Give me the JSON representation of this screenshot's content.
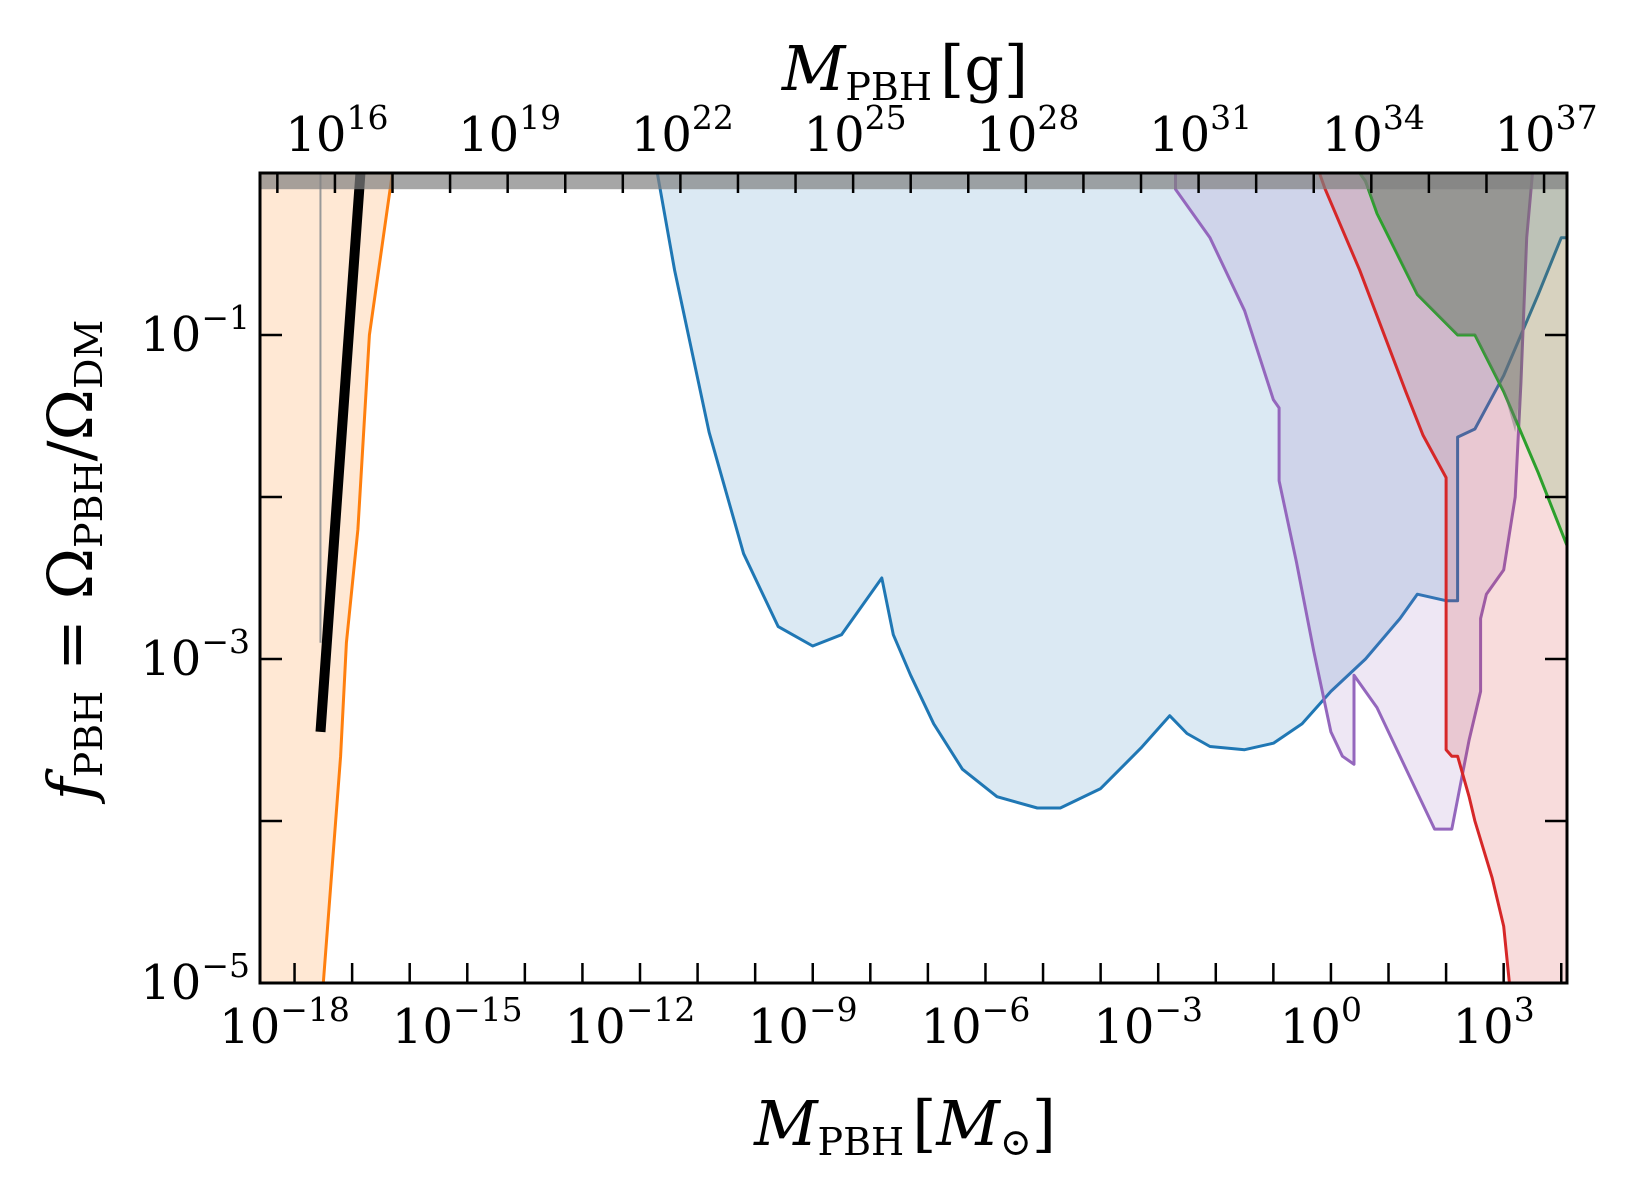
{
  "chart_data": {
    "type": "area",
    "xscale": "log",
    "yscale": "log",
    "xlim_exp": [
      -18.6,
      4.1
    ],
    "ylim_exp": [
      -5,
      0
    ],
    "xlabel": {
      "main": "M",
      "sub": "PBH",
      "unit": "M",
      "unit_sub": "⊙"
    },
    "ylabel": {
      "main": "f",
      "sub": "PBH",
      "eq": " = Ω",
      "sub2": "PBH",
      "slash": "/Ω",
      "sub3": "DM"
    },
    "top_xlabel": {
      "main": "M",
      "sub": "PBH",
      "unit": "g"
    },
    "grams_per_solar_mass": 1.989e+33,
    "x_ticks": [
      {
        "base": "10",
        "exp": "−18",
        "value_exp": -18
      },
      {
        "base": "10",
        "exp": "−15",
        "value_exp": -15
      },
      {
        "base": "10",
        "exp": "−12",
        "value_exp": -12
      },
      {
        "base": "10",
        "exp": "−9",
        "value_exp": -9
      },
      {
        "base": "10",
        "exp": "−6",
        "value_exp": -6
      },
      {
        "base": "10",
        "exp": "−3",
        "value_exp": -3
      },
      {
        "base": "10",
        "exp": "0",
        "value_exp": 0
      },
      {
        "base": "10",
        "exp": "3",
        "value_exp": 3
      }
    ],
    "top_ticks": [
      {
        "base": "10",
        "exp": "16",
        "value_exp_g": 16
      },
      {
        "base": "10",
        "exp": "19",
        "value_exp_g": 19
      },
      {
        "base": "10",
        "exp": "22",
        "value_exp_g": 22
      },
      {
        "base": "10",
        "exp": "25",
        "value_exp_g": 25
      },
      {
        "base": "10",
        "exp": "28",
        "value_exp_g": 28
      },
      {
        "base": "10",
        "exp": "31",
        "value_exp_g": 31
      },
      {
        "base": "10",
        "exp": "34",
        "value_exp_g": 34
      },
      {
        "base": "10",
        "exp": "37",
        "value_exp_g": 37
      }
    ],
    "y_ticks": [
      {
        "base": "10",
        "exp": "−1",
        "value_exp": -1
      },
      {
        "base": "10",
        "exp": "−3",
        "value_exp": -3
      },
      {
        "base": "10",
        "exp": "−5",
        "value_exp": -5
      }
    ],
    "top_band": {
      "y_exp": [
        -0.1,
        0.0
      ],
      "color": "#808080"
    },
    "series": [
      {
        "color": "#ff7f0e",
        "fill_opacity": 0.18,
        "closure": "left",
        "points_log10": [
          [
            -17.5,
            -5.0
          ],
          [
            -17.2,
            -3.6
          ],
          [
            -17.1,
            -2.9
          ],
          [
            -16.9,
            -2.2
          ],
          [
            -16.7,
            -1.0
          ],
          [
            -16.3,
            0.0
          ]
        ]
      },
      {
        "color": "#1f77b4",
        "fill_opacity": 0.16,
        "closure": "top",
        "points_log10": [
          [
            -11.7,
            0.0
          ],
          [
            -11.4,
            -0.6
          ],
          [
            -10.8,
            -1.6
          ],
          [
            -10.2,
            -2.35
          ],
          [
            -9.6,
            -2.8
          ],
          [
            -9.0,
            -2.92
          ],
          [
            -8.5,
            -2.85
          ],
          [
            -7.8,
            -2.5
          ],
          [
            -7.6,
            -2.85
          ],
          [
            -7.3,
            -3.1
          ],
          [
            -6.9,
            -3.4
          ],
          [
            -6.4,
            -3.68
          ],
          [
            -5.8,
            -3.85
          ],
          [
            -5.1,
            -3.92
          ],
          [
            -4.7,
            -3.92
          ],
          [
            -4.0,
            -3.8
          ],
          [
            -3.3,
            -3.55
          ],
          [
            -2.8,
            -3.35
          ],
          [
            -2.5,
            -3.46
          ],
          [
            -2.1,
            -3.54
          ],
          [
            -1.5,
            -3.56
          ],
          [
            -1.0,
            -3.52
          ],
          [
            -0.5,
            -3.4
          ],
          [
            0.0,
            -3.2
          ],
          [
            0.6,
            -3.0
          ],
          [
            1.2,
            -2.75
          ],
          [
            1.5,
            -2.6
          ],
          [
            2.0,
            -2.64
          ],
          [
            2.2,
            -2.64
          ],
          [
            2.2,
            -1.63
          ],
          [
            2.5,
            -1.58
          ],
          [
            3.0,
            -1.25
          ],
          [
            3.6,
            -0.75
          ],
          [
            4.0,
            -0.4
          ],
          [
            4.1,
            -0.4
          ],
          [
            4.1,
            0.0
          ]
        ]
      },
      {
        "color": "#9467bd",
        "fill_opacity": 0.16,
        "closure": "top",
        "points_log10": [
          [
            -2.7,
            0.0
          ],
          [
            -2.7,
            -0.1
          ],
          [
            -2.1,
            -0.4
          ],
          [
            -1.5,
            -0.85
          ],
          [
            -1.0,
            -1.4
          ],
          [
            -0.9,
            -1.45
          ],
          [
            -0.9,
            -1.9
          ],
          [
            -0.6,
            -2.4
          ],
          [
            -0.3,
            -2.95
          ],
          [
            0.0,
            -3.45
          ],
          [
            0.2,
            -3.6
          ],
          [
            0.4,
            -3.65
          ],
          [
            0.4,
            -3.1
          ],
          [
            0.8,
            -3.3
          ],
          [
            1.4,
            -3.75
          ],
          [
            1.8,
            -4.05
          ],
          [
            2.1,
            -4.05
          ],
          [
            2.4,
            -3.5
          ],
          [
            2.6,
            -3.2
          ],
          [
            2.6,
            -2.75
          ],
          [
            2.7,
            -2.6
          ],
          [
            3.0,
            -2.45
          ],
          [
            3.2,
            -2.0
          ],
          [
            3.3,
            -1.3
          ],
          [
            3.4,
            -0.4
          ],
          [
            3.5,
            0.0
          ]
        ]
      },
      {
        "color": "#d62728",
        "fill_opacity": 0.16,
        "closure": "bottom-right",
        "points_log10": [
          [
            -0.2,
            0.0
          ],
          [
            -0.1,
            -0.1
          ],
          [
            0.5,
            -0.6
          ],
          [
            1.3,
            -1.35
          ],
          [
            1.6,
            -1.62
          ],
          [
            2.0,
            -1.88
          ],
          [
            2.0,
            -3.56
          ],
          [
            2.1,
            -3.6
          ],
          [
            2.2,
            -3.6
          ],
          [
            2.4,
            -3.85
          ],
          [
            2.5,
            -4.0
          ],
          [
            2.8,
            -4.35
          ],
          [
            3.0,
            -4.65
          ],
          [
            3.1,
            -5.0
          ]
        ]
      },
      {
        "color": "#2ca02c",
        "fill_opacity": 0.16,
        "closure": "top-right",
        "points_log10": [
          [
            0.5,
            0.0
          ],
          [
            0.6,
            -0.05
          ],
          [
            0.8,
            -0.25
          ],
          [
            1.5,
            -0.75
          ],
          [
            2.2,
            -1.0
          ],
          [
            2.5,
            -1.0
          ],
          [
            3.0,
            -1.35
          ],
          [
            3.6,
            -1.85
          ],
          [
            4.1,
            -2.3
          ]
        ]
      },
      {
        "color": "#707070",
        "fill_opacity": 0.45,
        "closure": "none-fill",
        "points_log10": [
          [
            0.5,
            0.0
          ],
          [
            1.5,
            -0.75
          ],
          [
            2.2,
            -1.0
          ],
          [
            2.5,
            -1.0
          ],
          [
            3.0,
            -1.35
          ],
          [
            3.2,
            -1.6
          ],
          [
            3.3,
            -1.3
          ],
          [
            3.4,
            -0.4
          ],
          [
            3.5,
            0.0
          ]
        ]
      },
      {
        "color": "#000000",
        "line_width": 10,
        "closure": "line",
        "points_log10": [
          [
            -17.55,
            -3.45
          ],
          [
            -17.1,
            -1.2
          ],
          [
            -16.85,
            0.03
          ]
        ]
      }
    ]
  }
}
